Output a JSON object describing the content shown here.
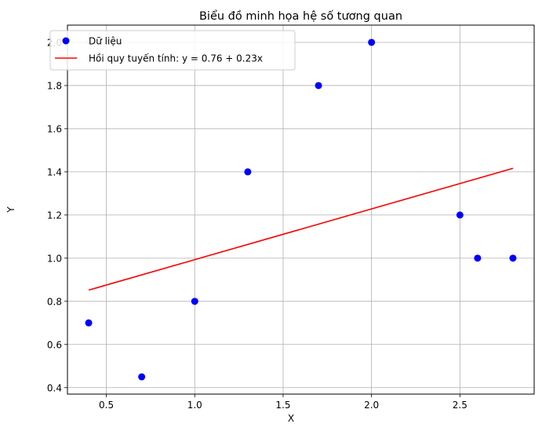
{
  "chart_data": {
    "type": "scatter",
    "title": "Biểu đồ minh họa hệ số tương quan",
    "xlabel": "X",
    "ylabel": "Y",
    "xlim": [
      0.28,
      2.92
    ],
    "ylim": [
      0.37,
      2.08
    ],
    "xticks": [
      0.5,
      1.0,
      1.5,
      2.0,
      2.5
    ],
    "yticks": [
      0.4,
      0.6,
      0.8,
      1.0,
      1.2,
      1.4,
      1.6,
      1.8,
      2.0
    ],
    "xtick_labels": [
      "0.5",
      "1.0",
      "1.5",
      "2.0",
      "2.5"
    ],
    "ytick_labels": [
      "0.4",
      "0.6",
      "0.8",
      "1.0",
      "1.2",
      "1.4",
      "1.6",
      "1.8",
      "2.0"
    ],
    "grid": true,
    "legend_position": "top-left",
    "series": [
      {
        "name": "Dữ liệu",
        "kind": "scatter",
        "color": "#0000ff",
        "x": [
          0.4,
          0.7,
          1.0,
          1.3,
          1.7,
          2.0,
          2.5,
          2.6,
          2.8
        ],
        "y": [
          0.7,
          0.45,
          0.8,
          1.4,
          1.8,
          2.0,
          1.2,
          1.0,
          1.0
        ]
      },
      {
        "name": "Hồi quy tuyến tính: y = 0.76 + 0.23x",
        "kind": "line",
        "color": "#ff0000",
        "x": [
          0.4,
          2.8
        ],
        "y": [
          0.852,
          1.4164
        ]
      }
    ]
  }
}
